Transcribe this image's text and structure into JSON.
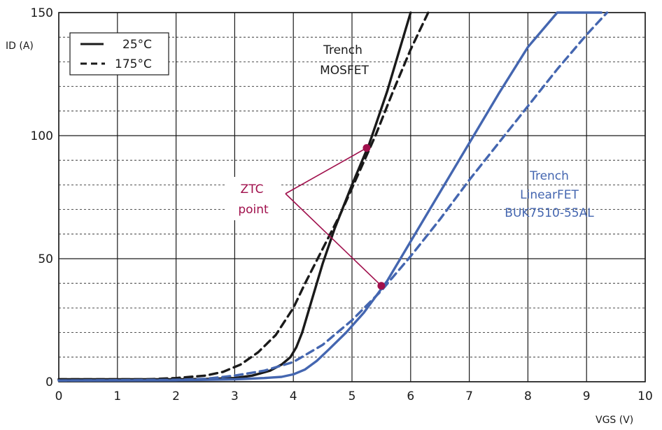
{
  "chart_data": {
    "type": "line",
    "xlabel": "VGS (V)",
    "ylabel": "ID (A)",
    "xlim": [
      0,
      10
    ],
    "ylim": [
      0,
      150
    ],
    "x_ticks": [
      0,
      1,
      2,
      3,
      4,
      5,
      6,
      7,
      8,
      9,
      10
    ],
    "y_ticks": [
      0,
      50,
      100,
      150
    ],
    "y_minor_step": 10,
    "grid": true,
    "legend_position": "top-left",
    "legend": [
      {
        "label": "25°C",
        "style": "solid"
      },
      {
        "label": "175°C",
        "style": "dashed"
      }
    ],
    "series": [
      {
        "group": "trench_mosfet",
        "temperature": "25°C",
        "color": "#1a1a1a",
        "style": "solid",
        "x": [
          0,
          1,
          2,
          2.5,
          3,
          3.3,
          3.6,
          3.8,
          3.95,
          4.05,
          4.15,
          4.3,
          4.5,
          4.7,
          5.0,
          5.3,
          5.6,
          5.85,
          6.0
        ],
        "y": [
          1,
          1,
          1,
          1.1,
          1.5,
          2.5,
          4.5,
          7,
          10,
          14,
          20,
          32,
          48,
          62,
          80,
          97,
          118,
          138,
          150
        ]
      },
      {
        "group": "trench_mosfet",
        "temperature": "175°C",
        "color": "#1a1a1a",
        "style": "dashed",
        "x": [
          0,
          1.5,
          2.0,
          2.5,
          2.8,
          3.1,
          3.4,
          3.7,
          4.0,
          4.2,
          4.5,
          4.8,
          5.1,
          5.4,
          5.7,
          6.0,
          6.3
        ],
        "y": [
          1,
          1,
          1.5,
          2.5,
          4,
          7,
          12,
          19,
          30,
          40,
          54,
          68,
          84,
          100,
          118,
          135,
          150
        ]
      },
      {
        "group": "trench_linearfet",
        "temperature": "25°C",
        "color": "#4466b0",
        "style": "solid",
        "x": [
          0,
          2,
          3,
          3.5,
          3.8,
          4.0,
          4.2,
          4.4,
          4.6,
          4.9,
          5.2,
          5.6,
          6.0,
          6.5,
          7.0,
          7.5,
          8.0,
          8.5,
          9.0,
          9.25
        ],
        "y": [
          0.5,
          0.6,
          1.0,
          1.5,
          2.0,
          3,
          5,
          8.5,
          13,
          20,
          28,
          41,
          57,
          77,
          97,
          117,
          136,
          150,
          150,
          150
        ]
      },
      {
        "group": "trench_linearfet",
        "temperature": "175°C",
        "color": "#4466b0",
        "style": "dashed",
        "x": [
          0,
          2,
          2.5,
          3.0,
          3.5,
          4.0,
          4.5,
          5.0,
          5.5,
          6.0,
          6.5,
          7.0,
          7.5,
          8.0,
          8.5,
          9.0,
          9.35
        ],
        "y": [
          0.5,
          0.8,
          1.2,
          2.5,
          4.5,
          8,
          15,
          25,
          37,
          51,
          66,
          82,
          97,
          112,
          127,
          141,
          150
        ]
      }
    ],
    "ztc_points": [
      {
        "x": 5.25,
        "y": 95
      },
      {
        "x": 5.5,
        "y": 39
      }
    ],
    "annotations": {
      "mosfet_label": [
        "Trench",
        "MOSFET"
      ],
      "linearfet_label": [
        "Trench",
        "LinearFET",
        "BUK7510-55AL"
      ],
      "ztc_label": [
        "ZTC",
        "point"
      ]
    },
    "colors": {
      "black_series": "#1a1a1a",
      "blue_series": "#4466b0",
      "ztc": "#a0104c",
      "grid": "#1a1a1a"
    }
  }
}
